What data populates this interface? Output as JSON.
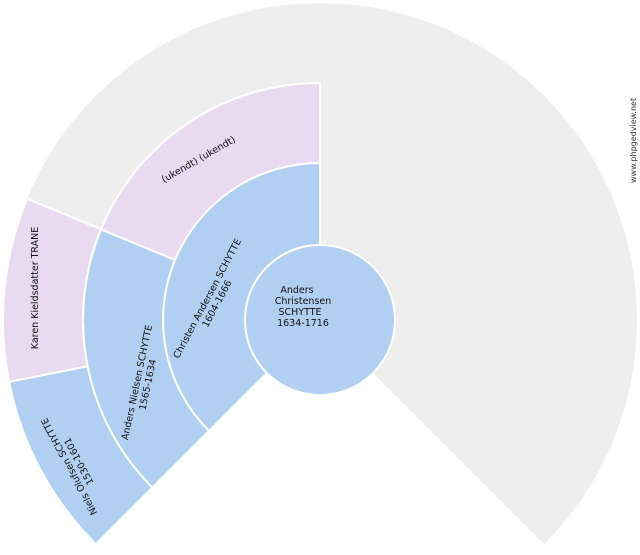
{
  "watermark": "www.phpgedview.net",
  "colors": {
    "male": "#b1cff0",
    "female": "#e9daf1",
    "empty": "#eeeeee"
  },
  "root": {
    "lines": [
      "Anders",
      "Christensen",
      "SCHYTTE",
      "1634-1716"
    ]
  },
  "ancestors": [
    {
      "generation": 1,
      "slot": 0,
      "sex": "male",
      "lines": [
        "Christen Andersen SCHYTTE",
        "1604-1666"
      ]
    },
    {
      "generation": 2,
      "slot": 0,
      "sex": "male",
      "lines": [
        "Anders Nielsen SCHYTTE",
        "1565-1634"
      ]
    },
    {
      "generation": 2,
      "slot": 1,
      "sex": "female",
      "lines": [
        "(ukendt) (ukendt)"
      ]
    },
    {
      "generation": 3,
      "slot": 0,
      "sex": "male",
      "lines": [
        "Niels Olufsen SCHYTTE",
        "1530-1601"
      ]
    },
    {
      "generation": 3,
      "slot": 1,
      "sex": "female",
      "lines": [
        "Karen Kieldsdatter TRANE"
      ]
    }
  ]
}
